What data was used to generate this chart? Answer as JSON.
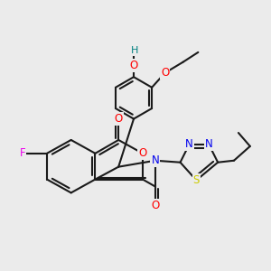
{
  "background_color": "#ebebeb",
  "bond_color": "#1a1a1a",
  "atom_colors": {
    "O": "#ff0000",
    "N": "#0000ee",
    "S": "#cccc00",
    "F": "#ee00ee",
    "H": "#008080",
    "C": "#1a1a1a"
  },
  "figsize": [
    3.0,
    3.0
  ],
  "dpi": 100,
  "lw": 1.5
}
